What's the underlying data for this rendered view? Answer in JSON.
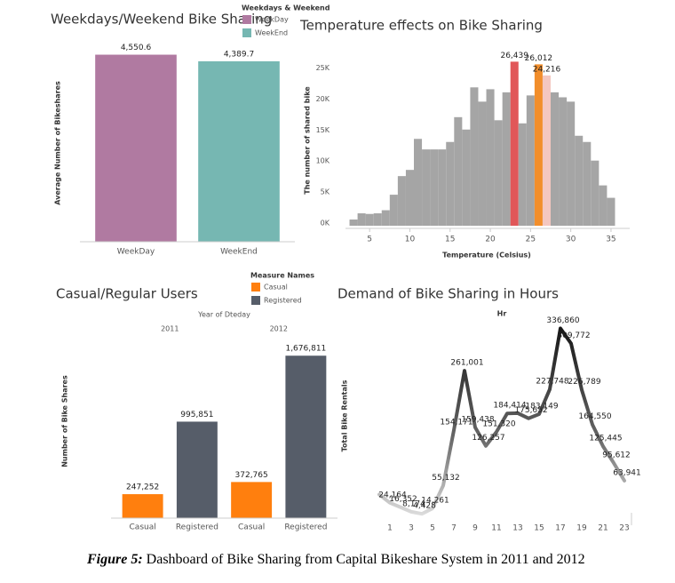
{
  "chart_data": [
    {
      "type": "bar",
      "title": "Weekdays/Weekend Bike Sharing",
      "ylabel": "Average Number of Bikeshares",
      "categories": [
        "WeekDay",
        "WeekEnd"
      ],
      "values": [
        4550.6,
        4389.7
      ],
      "value_labels": [
        "4,550.6",
        "4,389.7"
      ],
      "colors": [
        "#b07aa1",
        "#76b7b2"
      ],
      "legend_title": "Weekdays & Weekend",
      "ylim": [
        0,
        4800
      ]
    },
    {
      "type": "histogram",
      "title": "Temperature effects  on Bike Sharing",
      "xlabel": "Temperature (Celsius)",
      "ylabel": "The number of shared bike",
      "bins": [
        2.5,
        3.5,
        4.5,
        5.5,
        6.5,
        7.5,
        8.5,
        9.5,
        10.5,
        11.5,
        12.5,
        13.5,
        14.5,
        15.5,
        16.5,
        17.5,
        18.5,
        19.5,
        20.5,
        21.5,
        22.5,
        23.5,
        24.5,
        25.5,
        26.5,
        27.5,
        28.5,
        29.5,
        30.5,
        31.5,
        32.5,
        33.5,
        34.5,
        35.5
      ],
      "values": [
        1000,
        2000,
        1900,
        2000,
        2500,
        5000,
        8000,
        9000,
        14000,
        12300,
        12300,
        12300,
        13500,
        17500,
        15500,
        22300,
        20000,
        22000,
        17000,
        21500,
        26439,
        16500,
        21000,
        26012,
        24216,
        21500,
        20700,
        20000,
        14500,
        13500,
        10500,
        6500,
        4500
      ],
      "value_labels": [
        null,
        null,
        null,
        null,
        null,
        null,
        null,
        null,
        null,
        null,
        null,
        null,
        null,
        null,
        null,
        null,
        null,
        null,
        null,
        null,
        "26,439",
        null,
        null,
        "26,012",
        "24,216",
        null,
        null,
        null,
        null,
        null,
        null,
        null,
        null
      ],
      "colors": [
        "#a5a5a5",
        "#a5a5a5",
        "#a5a5a5",
        "#a5a5a5",
        "#a5a5a5",
        "#a5a5a5",
        "#a5a5a5",
        "#a5a5a5",
        "#a5a5a5",
        "#a5a5a5",
        "#a5a5a5",
        "#a5a5a5",
        "#a5a5a5",
        "#a5a5a5",
        "#a5a5a5",
        "#a5a5a5",
        "#a5a5a5",
        "#a5a5a5",
        "#a5a5a5",
        "#a5a5a5",
        "#e15759",
        "#a5a5a5",
        "#a5a5a5",
        "#f28e2b",
        "#f4c7c0",
        "#a5a5a5",
        "#a5a5a5",
        "#a5a5a5",
        "#a5a5a5",
        "#a5a5a5",
        "#a5a5a5",
        "#a5a5a5",
        "#a5a5a5"
      ],
      "xlim": [
        2,
        36
      ],
      "xticks": [
        5,
        10,
        15,
        20,
        25,
        30,
        35
      ],
      "ylim": [
        0,
        27500
      ],
      "yticks": [
        {
          "value": 0,
          "label": "0K"
        },
        {
          "value": 5000,
          "label": "5K"
        },
        {
          "value": 10000,
          "label": "10K"
        },
        {
          "value": 15000,
          "label": "15K"
        },
        {
          "value": 20000,
          "label": "20K"
        },
        {
          "value": 25000,
          "label": "25K"
        }
      ]
    },
    {
      "type": "bar",
      "title": "Casual/Regular Users",
      "ylabel": "Number of Bike Shares",
      "group_title": "Year of Dteday",
      "groups": [
        "2011",
        "2012"
      ],
      "categories": [
        "Casual",
        "Registered"
      ],
      "legend_title": "Measure Names",
      "series": [
        {
          "name": "Casual",
          "color": "#ff7f0e",
          "values": [
            247252,
            372765
          ],
          "value_labels": [
            "247,252",
            "372,765"
          ]
        },
        {
          "name": "Registered",
          "color": "#565d69",
          "values": [
            995851,
            1676811
          ],
          "value_labels": [
            "995,851",
            "1,676,811"
          ]
        }
      ],
      "ylim": [
        0,
        2000000
      ]
    },
    {
      "type": "line",
      "title": "Demand of Bike Sharing in Hours",
      "xlabel": "Hr",
      "ylabel": "Total Bike Rentals",
      "x": [
        0,
        1,
        2,
        3,
        4,
        5,
        6,
        7,
        8,
        9,
        10,
        11,
        12,
        13,
        14,
        15,
        16,
        17,
        18,
        19,
        20,
        21,
        22,
        23
      ],
      "values": [
        39130,
        24164,
        16352,
        8174,
        4428,
        14261,
        55132,
        154171,
        261001,
        159438,
        126257,
        151320,
        184414,
        184919,
        175652,
        183149,
        227748,
        336860,
        309772,
        226789,
        164550,
        125445,
        95612,
        63941
      ],
      "value_labels": [
        null,
        "24,164",
        "16,352",
        "8,174",
        "4,428",
        "14,261",
        "55,132",
        "154,171",
        "261,001",
        "159,438",
        "126,257",
        "151,320",
        "184,414",
        null,
        "175,652",
        "183,149",
        "227,748",
        "336,860",
        "309,772",
        "226,789",
        "164,550",
        "125,445",
        "95,612",
        "63,941"
      ],
      "xlim": [
        0,
        23
      ],
      "xticks": [
        1,
        3,
        5,
        7,
        9,
        11,
        13,
        15,
        17,
        19,
        21,
        23
      ],
      "ylim": [
        0,
        360000
      ]
    }
  ],
  "caption": {
    "label": "Figure 5:",
    "text": " Dashboard of Bike Sharing from Capital Bikeshare System in 2011 and 2012"
  }
}
